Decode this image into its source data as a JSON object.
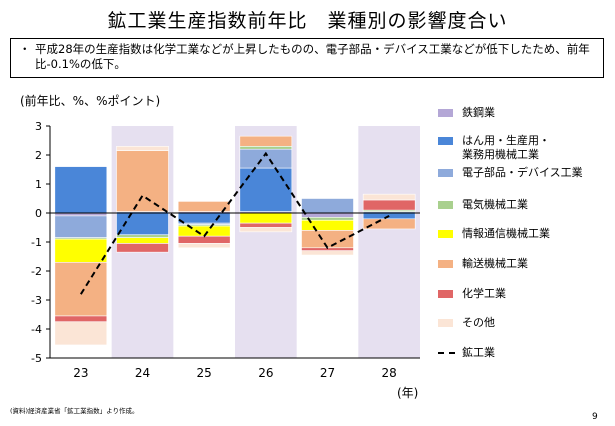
{
  "title": "鉱工業生産指数前年比　業種別の影響度合い",
  "summary": {
    "bullet": "・",
    "text": "平成28年の生産指数は化学工業などが上昇したものの、電子部品・デバイス工業などが低下したため、前年比-0.1%の低下。"
  },
  "unit_label": "(前年比、%、%ポイント)",
  "year_unit": "(年)",
  "source": "(資料)経済産業省「鉱工業指数」より作成。",
  "page_number": "9",
  "colors": {
    "iron_steel": "#b4a7d6",
    "machinery": "#4a86d8",
    "electronics": "#8eaadb",
    "electrical": "#a9d08e",
    "info_comm": "#ffff00",
    "transport": "#f4b183",
    "chemical": "#e06666",
    "other": "#fbe5d6",
    "shade": "#e6e0f0"
  },
  "chart_data": {
    "type": "bar",
    "stacked": true,
    "categories": [
      "23",
      "24",
      "25",
      "26",
      "27",
      "28"
    ],
    "ylim": [
      -5,
      3
    ],
    "yticks": [
      3,
      2,
      1,
      0,
      -1,
      -2,
      -3,
      -4,
      -5
    ],
    "shaded_categories": [
      "24",
      "26",
      "28"
    ],
    "grid": false,
    "legend_position": "right",
    "series": [
      {
        "key": "iron_steel",
        "name": "鉄鋼業",
        "values": [
          -0.1,
          0.0,
          0.05,
          0.05,
          -0.15,
          0.0
        ]
      },
      {
        "key": "machinery",
        "name": "はん用・生産用・業務用機械工業",
        "values": [
          1.6,
          -0.75,
          -0.35,
          1.5,
          0.0,
          -0.2
        ]
      },
      {
        "key": "electronics",
        "name": "電子部品・デバイス工業",
        "values": [
          -0.75,
          0.05,
          -0.05,
          0.65,
          0.5,
          0.05
        ]
      },
      {
        "key": "electrical",
        "name": "電気機械工業",
        "values": [
          -0.05,
          -0.1,
          -0.05,
          0.1,
          -0.1,
          0.05
        ]
      },
      {
        "key": "info_comm",
        "name": "情報通信機械工業",
        "values": [
          -0.8,
          -0.2,
          -0.35,
          -0.35,
          -0.35,
          0.0
        ]
      },
      {
        "key": "transport",
        "name": "輸送機械工業",
        "values": [
          -1.85,
          2.1,
          0.35,
          0.35,
          -0.6,
          -0.35
        ]
      },
      {
        "key": "chemical",
        "name": "化学工業",
        "values": [
          -0.2,
          -0.3,
          -0.25,
          -0.15,
          -0.1,
          0.35
        ]
      },
      {
        "key": "other",
        "name": "その他",
        "values": [
          -0.8,
          0.15,
          -0.15,
          -0.15,
          -0.15,
          0.2
        ]
      }
    ],
    "line": {
      "name": "鉱工業",
      "values": [
        -2.8,
        0.6,
        -0.8,
        2.05,
        -1.2,
        -0.1
      ]
    }
  }
}
